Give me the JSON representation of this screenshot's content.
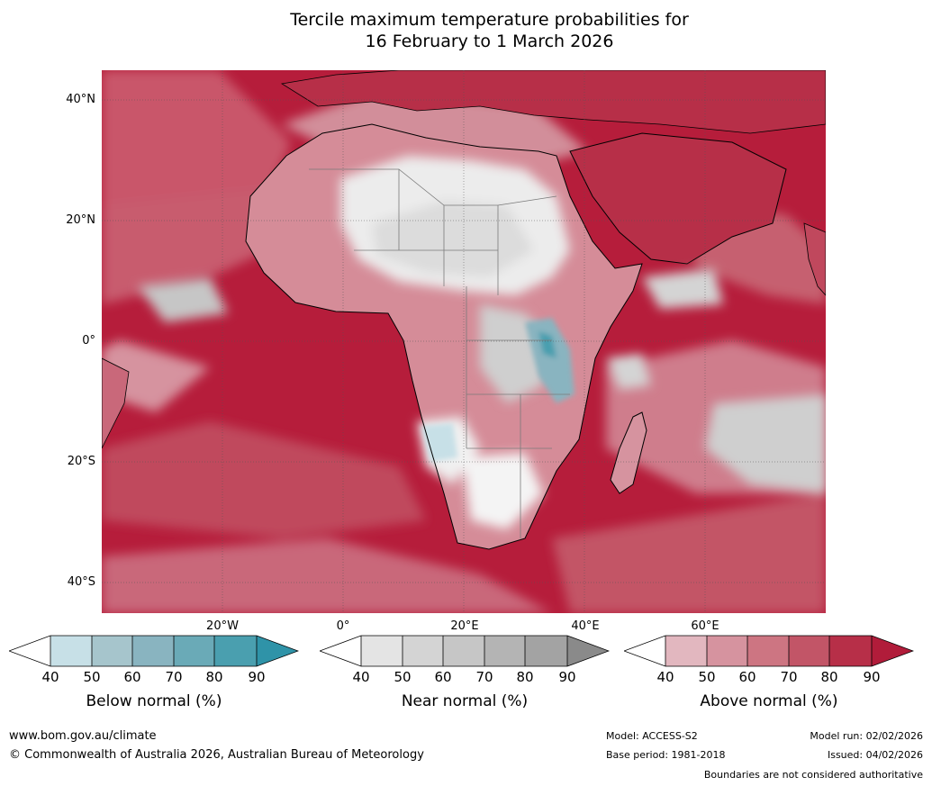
{
  "title_line1": "Tercile maximum temperature probabilities for",
  "title_line2": "16 February to 1 March 2026",
  "lat_labels": [
    "40°N",
    "20°N",
    "0°",
    "20°S",
    "40°S"
  ],
  "lon_labels": [
    "20°W",
    "0°",
    "20°E",
    "40°E",
    "60°E"
  ],
  "legends": {
    "below": {
      "label": "Below normal (%)",
      "ticks": [
        "40",
        "50",
        "60",
        "70",
        "80",
        "90"
      ],
      "colors": [
        "#ffffff",
        "#c7e0e7",
        "#a6c5cc",
        "#89b4c0",
        "#6aaab7",
        "#4a9faf",
        "#2f93a8"
      ]
    },
    "near": {
      "label": "Near normal (%)",
      "ticks": [
        "40",
        "50",
        "60",
        "70",
        "80",
        "90"
      ],
      "colors": [
        "#ffffff",
        "#e4e4e4",
        "#d4d4d4",
        "#c6c6c6",
        "#b4b4b4",
        "#a3a3a3",
        "#8a8a8a"
      ]
    },
    "above": {
      "label": "Above normal (%)",
      "ticks": [
        "40",
        "50",
        "60",
        "70",
        "80",
        "90"
      ],
      "colors": [
        "#ffffff",
        "#e2b7bf",
        "#d6939f",
        "#cd7582",
        "#c25567",
        "#b72f48",
        "#b11c3a"
      ]
    }
  },
  "map_colors": {
    "ocean_red": "#b61d3b",
    "land_light": "#e7e7e7",
    "border": "#7a7a7a",
    "coast": "#000000"
  },
  "footer": {
    "website": "www.bom.gov.au/climate",
    "copyright": "© Commonwealth of Australia 2026, Australian Bureau of Meteorology",
    "model": "Model: ACCESS-S2",
    "base_period": "Base period: 1981-2018",
    "model_run": "Model run: 02/02/2026",
    "issued": "Issued: 04/02/2026",
    "disclaimer": "Boundaries are not considered authoritative"
  }
}
